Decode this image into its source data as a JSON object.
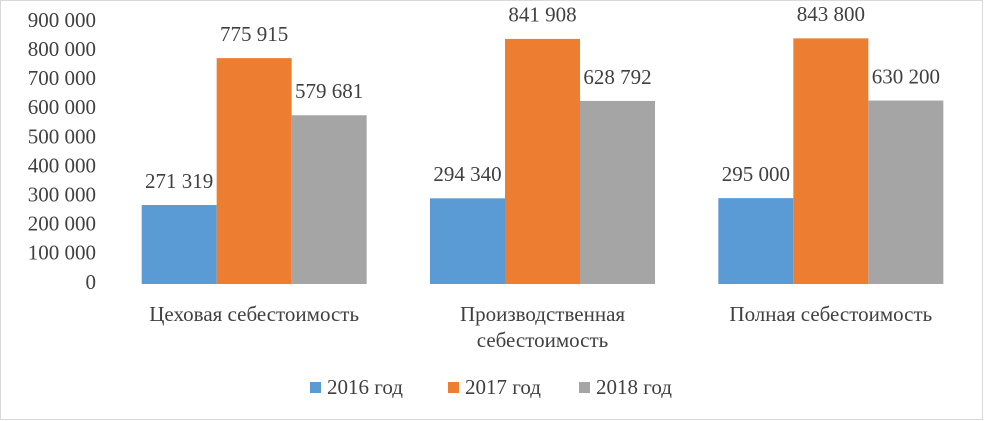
{
  "chart_data": {
    "type": "bar",
    "categories": [
      "Цеховая себестоимость",
      "Производственная себестоимость",
      "Полная себестоимость"
    ],
    "series": [
      {
        "name": "2016 год",
        "color": "#5b9bd5",
        "values": [
          271319,
          294340,
          295000
        ],
        "value_labels": [
          "271 319",
          "294 340",
          "295 000"
        ]
      },
      {
        "name": "2017 год",
        "color": "#ed7d31",
        "values": [
          775915,
          841908,
          843800
        ],
        "value_labels": [
          "775 915",
          "841 908",
          "843 800"
        ]
      },
      {
        "name": "2018 год",
        "color": "#a5a5a5",
        "values": [
          579681,
          628792,
          630200
        ],
        "value_labels": [
          "579 681",
          "628 792",
          "630 200"
        ]
      }
    ],
    "ylim": [
      0,
      900000
    ],
    "yticks": [
      0,
      {
        "value": 100000,
        "label": "100 000"
      },
      {
        "value": 200000,
        "label": "200 000"
      },
      {
        "value": 300000,
        "label": "300 000"
      },
      {
        "value": 400000,
        "label": "400 000"
      },
      {
        "value": 500000,
        "label": "500 000"
      },
      {
        "value": 600000,
        "label": "600 000"
      },
      {
        "value": 700000,
        "label": "700 000"
      },
      {
        "value": 800000,
        "label": "800 000"
      },
      {
        "value": 900000,
        "label": "900 000"
      }
    ],
    "grid": false,
    "legend": "bottom"
  }
}
